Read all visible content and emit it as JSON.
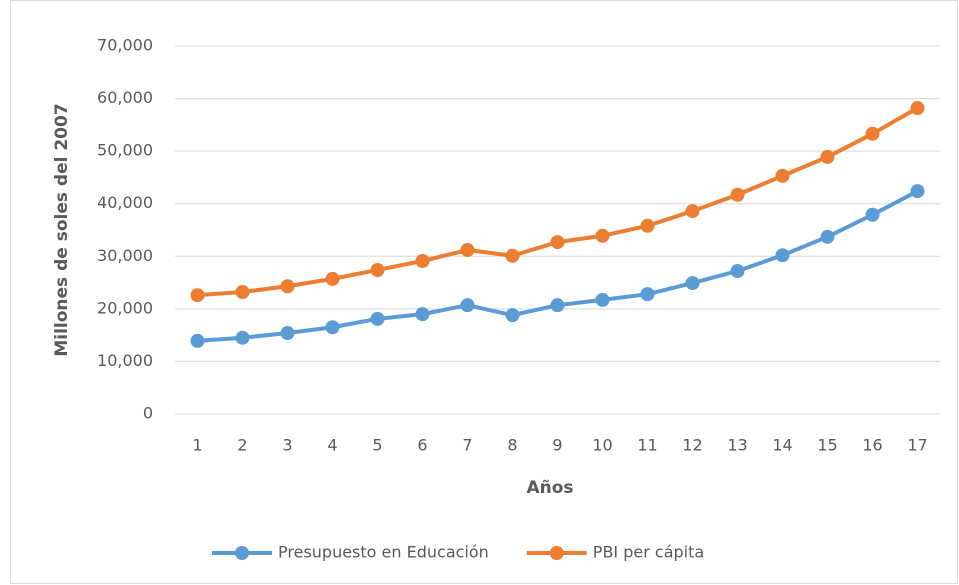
{
  "chart_data": {
    "type": "line",
    "categories": [
      1,
      2,
      3,
      4,
      5,
      6,
      7,
      8,
      9,
      10,
      11,
      12,
      13,
      14,
      15,
      16,
      17
    ],
    "series": [
      {
        "name": "Presupuesto en Educación",
        "color": "#5b9bd5",
        "values": [
          13900,
          14500,
          15400,
          16500,
          18100,
          19000,
          20700,
          18800,
          20700,
          21700,
          22800,
          24900,
          27200,
          30200,
          33700,
          37900,
          42400
        ]
      },
      {
        "name": "PBI per cápita",
        "color": "#ed7d31",
        "values": [
          22600,
          23200,
          24300,
          25700,
          27400,
          29100,
          31200,
          30100,
          32700,
          33900,
          35800,
          38600,
          41700,
          45300,
          48900,
          53300,
          58200
        ]
      }
    ],
    "ylabel": "Millones de soles del 2007",
    "xlabel": "Años",
    "ylim": [
      0,
      70000
    ],
    "yticks": [
      0,
      {
        "value": 10000,
        "label": "10,000"
      },
      {
        "value": 20000,
        "label": "20,000"
      },
      {
        "value": 30000,
        "label": "30,000"
      },
      {
        "value": 40000,
        "label": "40,000"
      },
      {
        "value": 50000,
        "label": "50,000"
      },
      {
        "value": 60000,
        "label": "60,000"
      },
      {
        "value": 70000,
        "label": "70,000"
      }
    ],
    "grid": true,
    "legend": "bottom"
  }
}
